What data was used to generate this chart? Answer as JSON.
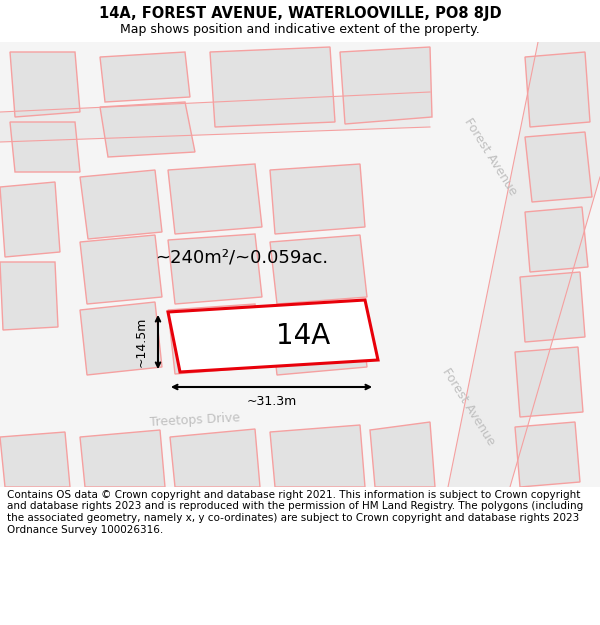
{
  "title": "14A, FOREST AVENUE, WATERLOOVILLE, PO8 8JD",
  "subtitle": "Map shows position and indicative extent of the property.",
  "footer": "Contains OS data © Crown copyright and database right 2021. This information is subject to Crown copyright and database rights 2023 and is reproduced with the permission of HM Land Registry. The polygons (including the associated geometry, namely x, y co-ordinates) are subject to Crown copyright and database rights 2023 Ordnance Survey 100026316.",
  "area_label": "~240m²/~0.059ac.",
  "width_label": "~31.3m",
  "height_label": "~14.5m",
  "plot_label": "14A",
  "bg_color": "#f7f7f7",
  "building_fill": "#e2e2e2",
  "building_edge": "#f5a0a0",
  "road_fill": "#f0f0f0",
  "highlight_edge": "#e8000a",
  "highlight_fill": "#ffffff",
  "street_label_color": "#c0c0c0",
  "title_fontsize": 10.5,
  "subtitle_fontsize": 9,
  "footer_fontsize": 7.5,
  "area_fontsize": 13,
  "dim_fontsize": 9,
  "label_fontsize": 20
}
